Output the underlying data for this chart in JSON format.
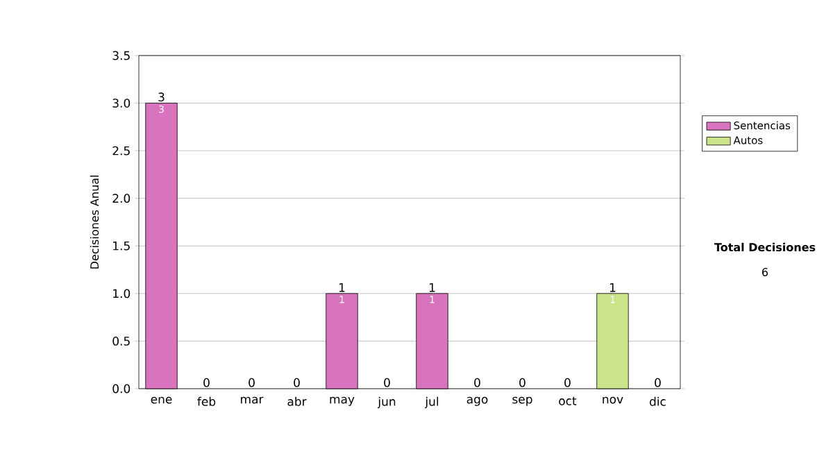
{
  "chart_data": {
    "type": "bar",
    "stacked": true,
    "ylabel": "Decisiones Anual",
    "categories": [
      "ene",
      "feb",
      "mar",
      "abr",
      "may",
      "jun",
      "jul",
      "ago",
      "sep",
      "oct",
      "nov",
      "dic"
    ],
    "series": [
      {
        "name": "Sentencias",
        "color": "#d873bd",
        "values": [
          3,
          0,
          0,
          0,
          1,
          0,
          1,
          0,
          0,
          0,
          0,
          0
        ],
        "value_labels": [
          "3",
          null,
          null,
          null,
          "1",
          null,
          "1",
          null,
          null,
          null,
          null,
          null
        ]
      },
      {
        "name": "Autos",
        "color": "#cbe48c",
        "values": [
          0,
          0,
          0,
          0,
          0,
          0,
          0,
          0,
          0,
          0,
          1,
          0
        ],
        "value_labels": [
          null,
          null,
          null,
          null,
          null,
          null,
          null,
          null,
          null,
          null,
          "1",
          null
        ]
      }
    ],
    "totals": [
      "3",
      "0",
      "0",
      "0",
      "1",
      "0",
      "1",
      "0",
      "0",
      "0",
      "1",
      "0"
    ],
    "ylim": [
      0,
      3.5
    ],
    "yticks": [
      {
        "value": 0,
        "label": "0.0"
      },
      0.5,
      {
        "value": 1,
        "label": "1.0"
      },
      1.5,
      {
        "value": 2,
        "label": "2.0"
      },
      2.5,
      {
        "value": 3,
        "label": "3.0"
      },
      3.5
    ],
    "grid": "y",
    "legend": "right",
    "annotations": [
      "Total Decisiones",
      "6"
    ]
  }
}
